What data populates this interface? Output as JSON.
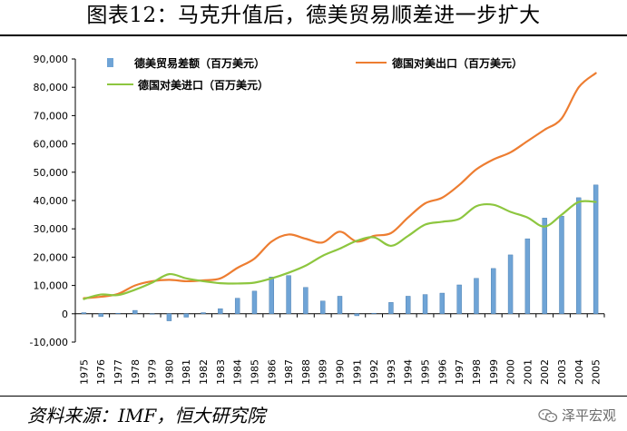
{
  "header": {
    "title": "图表12：马克升值后，德美贸易顺差进一步扩大"
  },
  "footer": {
    "source": "资料来源：IMF，恒大研究院",
    "brand": "泽平宏观"
  },
  "colors": {
    "bar": "#6fa4d6",
    "bar_edge": "#3f74a8",
    "exports": "#ed7d31",
    "imports": "#8dc63f"
  },
  "chart_data": {
    "type": "bar",
    "title": "图表12：马克升值后，德美贸易顺差进一步扩大",
    "xlabel": "",
    "ylabel": "",
    "ylim": [
      -10000,
      90000
    ],
    "yticks": [
      -10000,
      0,
      10000,
      20000,
      30000,
      40000,
      50000,
      60000,
      70000,
      80000,
      90000
    ],
    "ytick_labels": [
      "-10,000",
      "0",
      "10,000",
      "20,000",
      "30,000",
      "40,000",
      "50,000",
      "60,000",
      "70,000",
      "80,000",
      "90,000"
    ],
    "categories": [
      "1975",
      "1976",
      "1977",
      "1978",
      "1979",
      "1980",
      "1981",
      "1982",
      "1983",
      "1984",
      "1985",
      "1986",
      "1987",
      "1988",
      "1989",
      "1990",
      "1991",
      "1992",
      "1993",
      "1994",
      "1995",
      "1996",
      "1997",
      "1998",
      "1999",
      "2000",
      "2001",
      "2002",
      "2003",
      "2004",
      "2005"
    ],
    "grid": false,
    "legend_position": "top-left",
    "series": [
      {
        "name": "德美贸易差额（百万美元）",
        "kind": "bar",
        "values": [
          400,
          -1000,
          200,
          1200,
          -200,
          -2500,
          -1200,
          400,
          1800,
          5500,
          8000,
          13000,
          13500,
          9300,
          4500,
          6200,
          -700,
          200,
          4000,
          6200,
          6800,
          7300,
          10200,
          12500,
          16000,
          20800,
          26500,
          33800,
          34500,
          41000,
          45500
        ]
      },
      {
        "name": "德国对美出口（百万美元）",
        "kind": "line",
        "values": [
          5500,
          6000,
          7000,
          10000,
          11500,
          12000,
          11500,
          11800,
          12500,
          16200,
          19500,
          25500,
          28000,
          26500,
          25200,
          29000,
          25500,
          27500,
          28500,
          34000,
          39000,
          41000,
          45500,
          51000,
          54500,
          57000,
          61000,
          65000,
          69000,
          80000,
          85000
        ]
      },
      {
        "name": "德国对美进口（百万美元）",
        "kind": "line",
        "values": [
          5200,
          6800,
          6600,
          8500,
          11000,
          14000,
          12500,
          11500,
          10800,
          10700,
          11000,
          12500,
          14500,
          17000,
          20500,
          23000,
          25800,
          27000,
          24000,
          27500,
          31500,
          32500,
          33500,
          38000,
          38500,
          36000,
          34000,
          30800,
          35000,
          39500,
          39500
        ]
      }
    ]
  }
}
